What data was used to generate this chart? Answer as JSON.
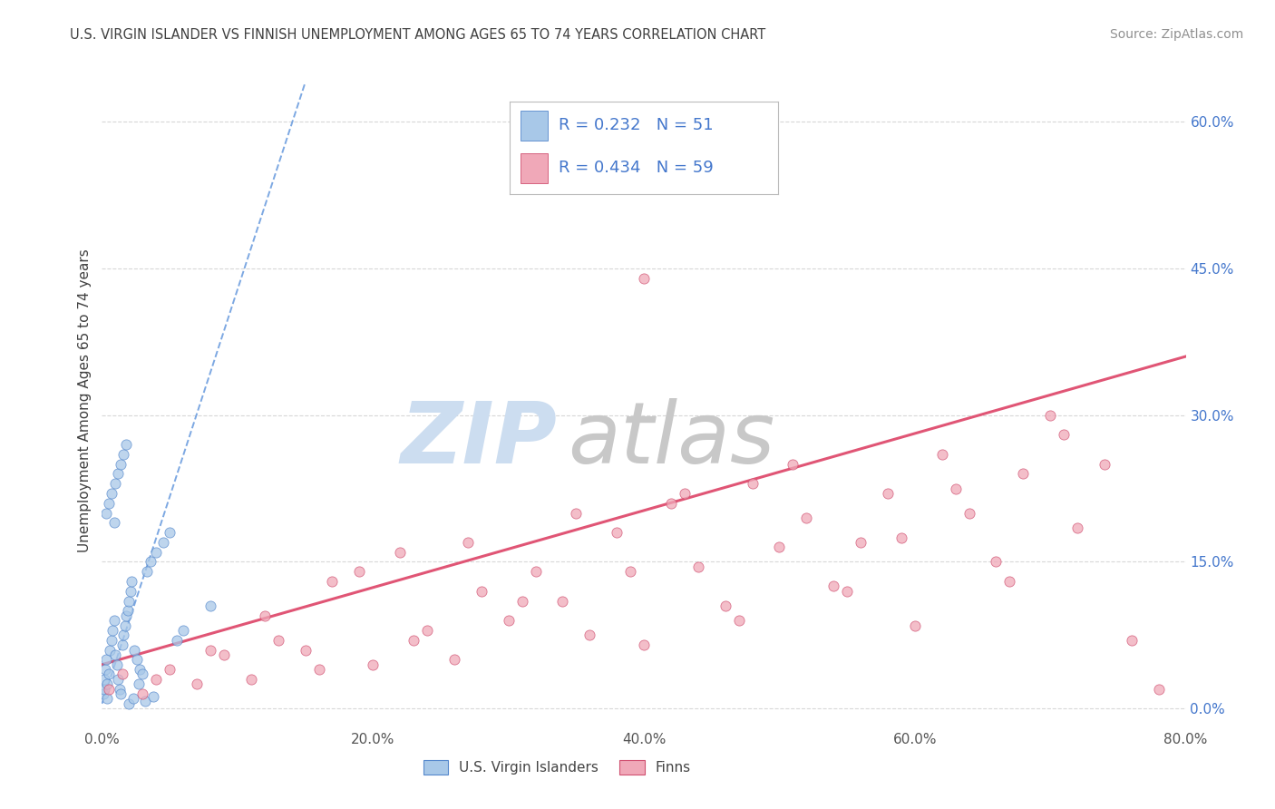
{
  "title": "U.S. VIRGIN ISLANDER VS FINNISH UNEMPLOYMENT AMONG AGES 65 TO 74 YEARS CORRELATION CHART",
  "source": "Source: ZipAtlas.com",
  "ylabel": "Unemployment Among Ages 65 to 74 years",
  "x_tick_labels": [
    "0.0%",
    "20.0%",
    "40.0%",
    "60.0%",
    "80.0%"
  ],
  "x_tick_values": [
    0.0,
    20.0,
    40.0,
    60.0,
    80.0
  ],
  "y_tick_labels": [
    "0.0%",
    "15.0%",
    "30.0%",
    "45.0%",
    "60.0%"
  ],
  "y_tick_values": [
    0.0,
    15.0,
    30.0,
    45.0,
    60.0
  ],
  "xlim": [
    0.0,
    80.0
  ],
  "ylim": [
    -2.0,
    65.0
  ],
  "blue_R": 0.232,
  "blue_N": 51,
  "pink_R": 0.434,
  "pink_N": 59,
  "blue_color": "#a8c8e8",
  "pink_color": "#f0a8b8",
  "blue_edge_color": "#5588cc",
  "pink_edge_color": "#d05070",
  "blue_line_color": "#6699dd",
  "pink_line_color": "#e05575",
  "title_color": "#404040",
  "source_color": "#909090",
  "legend_text_color": "#4477cc",
  "watermark_zip_color": "#ccddf0",
  "watermark_atlas_color": "#c8c8c8",
  "grid_color": "#d8d8d8",
  "blue_trend_x0": 0.0,
  "blue_trend_y0": 0.5,
  "blue_trend_x1": 15.0,
  "blue_trend_y1": 64.0,
  "pink_trend_x0": 0.0,
  "pink_trend_y0": 4.5,
  "pink_trend_x1": 80.0,
  "pink_trend_y1": 36.0,
  "blue_scatter_x": [
    0.1,
    0.15,
    0.2,
    0.25,
    0.3,
    0.35,
    0.4,
    0.5,
    0.6,
    0.7,
    0.8,
    0.9,
    1.0,
    1.1,
    1.2,
    1.3,
    1.4,
    1.5,
    1.6,
    1.7,
    1.8,
    1.9,
    2.0,
    2.1,
    2.2,
    2.4,
    2.6,
    2.8,
    3.0,
    3.3,
    3.6,
    4.0,
    4.5,
    5.0,
    5.5,
    6.0,
    0.3,
    0.5,
    0.7,
    0.9,
    1.0,
    1.2,
    1.4,
    1.6,
    1.8,
    2.0,
    2.3,
    2.7,
    3.2,
    3.8,
    8.0
  ],
  "blue_scatter_y": [
    1.5,
    2.0,
    3.0,
    4.0,
    5.0,
    1.0,
    2.5,
    3.5,
    6.0,
    7.0,
    8.0,
    9.0,
    5.5,
    4.5,
    3.0,
    2.0,
    1.5,
    6.5,
    7.5,
    8.5,
    9.5,
    10.0,
    11.0,
    12.0,
    13.0,
    6.0,
    5.0,
    4.0,
    3.5,
    14.0,
    15.0,
    16.0,
    17.0,
    18.0,
    7.0,
    8.0,
    20.0,
    21.0,
    22.0,
    19.0,
    23.0,
    24.0,
    25.0,
    26.0,
    27.0,
    0.5,
    1.0,
    2.5,
    0.8,
    1.2,
    10.5
  ],
  "pink_scatter_x": [
    0.5,
    1.5,
    3.0,
    5.0,
    7.0,
    9.0,
    11.0,
    13.0,
    15.0,
    17.0,
    20.0,
    22.0,
    24.0,
    26.0,
    28.0,
    30.0,
    32.0,
    34.0,
    36.0,
    38.0,
    40.0,
    42.0,
    44.0,
    46.0,
    48.0,
    50.0,
    52.0,
    54.0,
    56.0,
    58.0,
    60.0,
    62.0,
    64.0,
    66.0,
    68.0,
    70.0,
    72.0,
    74.0,
    4.0,
    8.0,
    12.0,
    16.0,
    19.0,
    23.0,
    27.0,
    31.0,
    35.0,
    39.0,
    43.0,
    47.0,
    51.0,
    55.0,
    59.0,
    63.0,
    67.0,
    71.0,
    76.0,
    40.0,
    78.0
  ],
  "pink_scatter_y": [
    2.0,
    3.5,
    1.5,
    4.0,
    2.5,
    5.5,
    3.0,
    7.0,
    6.0,
    13.0,
    4.5,
    16.0,
    8.0,
    5.0,
    12.0,
    9.0,
    14.0,
    11.0,
    7.5,
    18.0,
    6.5,
    21.0,
    14.5,
    10.5,
    23.0,
    16.5,
    19.5,
    12.5,
    17.0,
    22.0,
    8.5,
    26.0,
    20.0,
    15.0,
    24.0,
    30.0,
    18.5,
    25.0,
    3.0,
    6.0,
    9.5,
    4.0,
    14.0,
    7.0,
    17.0,
    11.0,
    20.0,
    14.0,
    22.0,
    9.0,
    25.0,
    12.0,
    17.5,
    22.5,
    13.0,
    28.0,
    7.0,
    44.0,
    2.0
  ]
}
